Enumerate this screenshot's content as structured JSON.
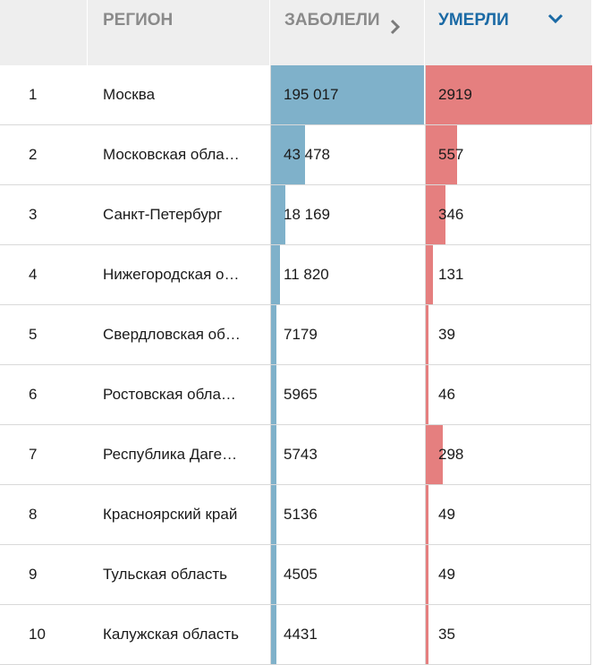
{
  "header": {
    "rank": "",
    "region": "РЕГИОН",
    "cases": "ЗАБОЛЕЛИ",
    "deaths": "УМЕРЛИ"
  },
  "rows": [
    {
      "rank": "1",
      "region": "Москва",
      "cases": "195 017",
      "deaths": "2919",
      "cases_value": 195017,
      "deaths_value": 2919
    },
    {
      "rank": "2",
      "region": "Московская обла…",
      "cases": "43 478",
      "deaths": "557",
      "cases_value": 43478,
      "deaths_value": 557
    },
    {
      "rank": "3",
      "region": "Санкт-Петербург",
      "cases": "18 169",
      "deaths": "346",
      "cases_value": 18169,
      "deaths_value": 346
    },
    {
      "rank": "4",
      "region": "Нижегородская о…",
      "cases": "11 820",
      "deaths": "131",
      "cases_value": 11820,
      "deaths_value": 131
    },
    {
      "rank": "5",
      "region": "Свердловская об…",
      "cases": "7179",
      "deaths": "39",
      "cases_value": 7179,
      "deaths_value": 39
    },
    {
      "rank": "6",
      "region": "Ростовская обла…",
      "cases": "5965",
      "deaths": "46",
      "cases_value": 5965,
      "deaths_value": 46
    },
    {
      "rank": "7",
      "region": "Республика Даге…",
      "cases": "5743",
      "deaths": "298",
      "cases_value": 5743,
      "deaths_value": 298
    },
    {
      "rank": "8",
      "region": "Красноярский край",
      "cases": "5136",
      "deaths": "49",
      "cases_value": 5136,
      "deaths_value": 49
    },
    {
      "rank": "9",
      "region": "Тульская область",
      "cases": "4505",
      "deaths": "49",
      "cases_value": 4505,
      "deaths_value": 49
    },
    {
      "rank": "10",
      "region": "Калужская область",
      "cases": "4431",
      "deaths": "35",
      "cases_value": 4431,
      "deaths_value": 35
    }
  ],
  "icons": {
    "cases_sort": "chevron-right-icon",
    "deaths_sort": "chevron-down-icon"
  },
  "colors": {
    "cases_bar": "#7fb1ca",
    "deaths_bar": "#e57f7f",
    "active_header": "#1b6aa5",
    "header_text": "#8a8a8a",
    "header_bg": "#eeeeee"
  }
}
